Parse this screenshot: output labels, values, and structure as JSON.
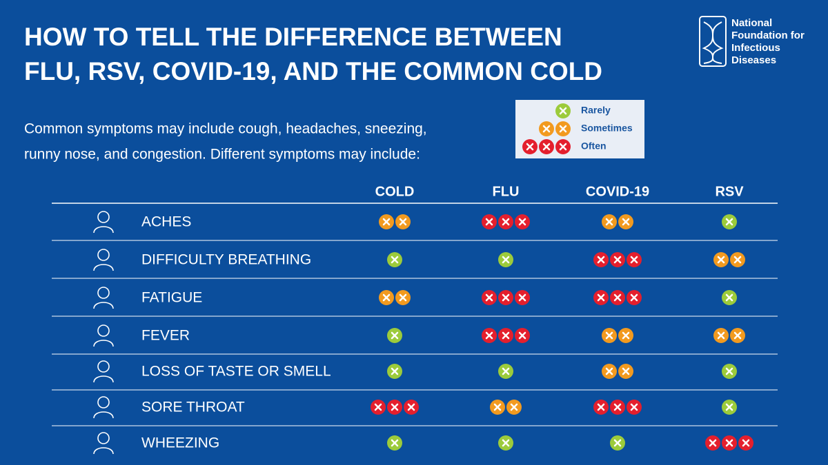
{
  "title": [
    "HOW TO TELL THE DIFFERENCE BETWEEN",
    "FLU, RSV, COVID-19, AND THE COMMON COLD"
  ],
  "subtitle": [
    "Common symptoms may include cough, headaches, sneezing,",
    "runny nose, and congestion. Different symptoms may include:"
  ],
  "logo": [
    "National",
    "Foundation for",
    "Infectious",
    "Diseases"
  ],
  "legend": [
    {
      "count": 1,
      "label": "Rarely",
      "color": "#9ccb3b"
    },
    {
      "count": 2,
      "label": "Sometimes",
      "color": "#f29a1f"
    },
    {
      "count": 3,
      "label": "Often",
      "color": "#e41f2d"
    }
  ],
  "table": {
    "columns": [
      "COLD",
      "FLU",
      "COVID-19",
      "RSV"
    ],
    "rows": [
      {
        "symptom": "ACHES",
        "levels": [
          2,
          3,
          2,
          1
        ]
      },
      {
        "symptom": "DIFFICULTY BREATHING",
        "levels": [
          1,
          1,
          3,
          2
        ]
      },
      {
        "symptom": "FATIGUE",
        "levels": [
          2,
          3,
          3,
          1
        ]
      },
      {
        "symptom": "FEVER",
        "levels": [
          1,
          3,
          2,
          2
        ]
      },
      {
        "symptom": "LOSS OF TASTE OR SMELL",
        "levels": [
          1,
          1,
          2,
          1
        ]
      },
      {
        "symptom": "SORE THROAT",
        "levels": [
          3,
          2,
          3,
          1
        ]
      },
      {
        "symptom": "WHEEZING",
        "levels": [
          1,
          1,
          1,
          3
        ]
      }
    ]
  }
}
